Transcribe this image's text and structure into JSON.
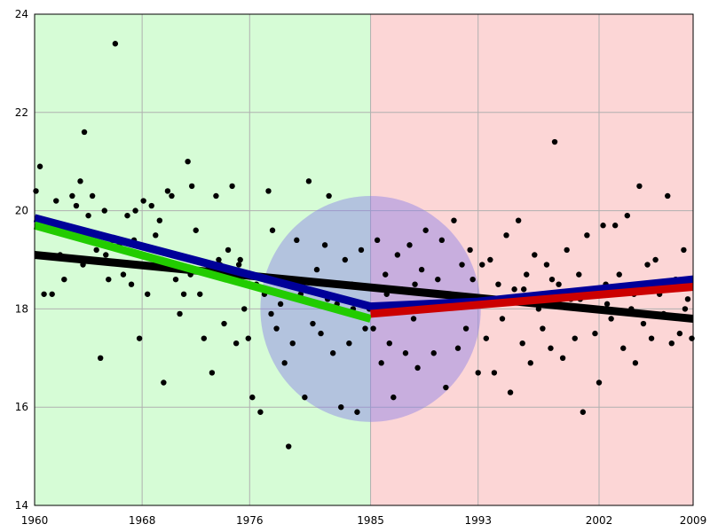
{
  "chart_data": {
    "type": "scatter",
    "title": "",
    "xlabel": "",
    "ylabel": "",
    "xlim": [
      1960,
      2009
    ],
    "ylim": [
      14,
      24
    ],
    "x_ticks": [
      1960,
      1968,
      1976,
      1985,
      1993,
      2002,
      2009
    ],
    "y_ticks": [
      14,
      16,
      18,
      20,
      22,
      24
    ],
    "grid": true,
    "regions": [
      {
        "x_start": 1960,
        "x_end": 1985,
        "color": "#d6fcd6"
      },
      {
        "x_start": 1985,
        "x_end": 2009,
        "color": "#fcd6d6"
      }
    ],
    "highlight_ellipse": {
      "cx": 1985,
      "cy": 18.0,
      "rx_years": 8.2,
      "ry": 2.3,
      "color": "#8a7fe8",
      "opacity": 0.45
    },
    "trend_lines": [
      {
        "points": [
          [
            1960,
            19.1
          ],
          [
            2009,
            17.8
          ]
        ],
        "color": "#000000"
      },
      {
        "points": [
          [
            1960,
            19.85
          ],
          [
            1985,
            18.05
          ],
          [
            1993,
            18.15
          ],
          [
            2009,
            18.6
          ]
        ],
        "color": "#000099"
      },
      {
        "points": [
          [
            1960,
            19.7
          ],
          [
            1985,
            17.8
          ]
        ],
        "color": "#22cc00"
      },
      {
        "points": [
          [
            1985,
            17.9
          ],
          [
            2009,
            18.45
          ]
        ],
        "color": "#cc0000"
      }
    ],
    "point_color": "#000000",
    "points": [
      [
        1960.1,
        20.4
      ],
      [
        1960.4,
        20.9
      ],
      [
        1960.7,
        18.3
      ],
      [
        1961.0,
        19.7
      ],
      [
        1961.3,
        18.3
      ],
      [
        1961.6,
        20.2
      ],
      [
        1961.9,
        19.1
      ],
      [
        1962.2,
        18.6
      ],
      [
        1962.5,
        19.5
      ],
      [
        1962.8,
        20.3
      ],
      [
        1963.1,
        20.1
      ],
      [
        1963.4,
        20.6
      ],
      [
        1963.7,
        21.6
      ],
      [
        1964.0,
        19.9
      ],
      [
        1964.3,
        20.3
      ],
      [
        1964.6,
        19.2
      ],
      [
        1964.9,
        17.0
      ],
      [
        1965.2,
        20.0
      ],
      [
        1965.5,
        18.6
      ],
      [
        1965.8,
        19.4
      ],
      [
        1966.0,
        23.4
      ],
      [
        1966.3,
        19.3
      ],
      [
        1966.6,
        18.7
      ],
      [
        1966.9,
        19.9
      ],
      [
        1967.2,
        18.5
      ],
      [
        1967.5,
        20.0
      ],
      [
        1967.8,
        17.4
      ],
      [
        1968.1,
        20.2
      ],
      [
        1968.4,
        18.3
      ],
      [
        1968.7,
        20.1
      ],
      [
        1969.0,
        19.5
      ],
      [
        1969.3,
        19.8
      ],
      [
        1969.6,
        16.5
      ],
      [
        1969.9,
        20.4
      ],
      [
        1970.2,
        20.3
      ],
      [
        1970.5,
        18.6
      ],
      [
        1970.8,
        17.9
      ],
      [
        1971.1,
        18.3
      ],
      [
        1971.4,
        21.0
      ],
      [
        1971.7,
        20.5
      ],
      [
        1972.0,
        19.6
      ],
      [
        1972.3,
        18.3
      ],
      [
        1972.6,
        17.4
      ],
      [
        1972.9,
        18.8
      ],
      [
        1973.2,
        16.7
      ],
      [
        1973.5,
        20.3
      ],
      [
        1973.8,
        18.9
      ],
      [
        1974.1,
        17.7
      ],
      [
        1974.4,
        19.2
      ],
      [
        1974.7,
        20.5
      ],
      [
        1975.0,
        17.3
      ],
      [
        1975.3,
        19.0
      ],
      [
        1975.6,
        18.0
      ],
      [
        1975.9,
        17.4
      ],
      [
        1976.2,
        16.2
      ],
      [
        1976.5,
        18.5
      ],
      [
        1976.8,
        15.9
      ],
      [
        1977.1,
        18.3
      ],
      [
        1977.4,
        20.4
      ],
      [
        1977.7,
        19.6
      ],
      [
        1978.0,
        17.6
      ],
      [
        1978.3,
        18.1
      ],
      [
        1978.6,
        16.9
      ],
      [
        1978.9,
        15.2
      ],
      [
        1979.2,
        17.3
      ],
      [
        1979.5,
        19.4
      ],
      [
        1979.8,
        18.3
      ],
      [
        1980.1,
        16.2
      ],
      [
        1980.4,
        20.6
      ],
      [
        1980.7,
        17.7
      ],
      [
        1981.0,
        18.8
      ],
      [
        1981.3,
        17.5
      ],
      [
        1981.6,
        19.3
      ],
      [
        1981.9,
        20.3
      ],
      [
        1982.2,
        17.1
      ],
      [
        1982.5,
        18.1
      ],
      [
        1982.8,
        16.0
      ],
      [
        1983.1,
        19.0
      ],
      [
        1983.4,
        17.3
      ],
      [
        1983.7,
        18.0
      ],
      [
        1984.0,
        15.9
      ],
      [
        1984.3,
        19.2
      ],
      [
        1984.6,
        17.6
      ],
      [
        1984.9,
        18.0
      ],
      [
        1985.2,
        17.6
      ],
      [
        1985.5,
        19.4
      ],
      [
        1985.8,
        16.9
      ],
      [
        1986.1,
        18.7
      ],
      [
        1986.4,
        17.3
      ],
      [
        1986.7,
        16.2
      ],
      [
        1987.0,
        19.1
      ],
      [
        1987.3,
        18.4
      ],
      [
        1987.6,
        17.1
      ],
      [
        1987.9,
        19.3
      ],
      [
        1988.2,
        17.8
      ],
      [
        1988.5,
        16.8
      ],
      [
        1988.8,
        18.8
      ],
      [
        1989.1,
        19.6
      ],
      [
        1989.4,
        18.0
      ],
      [
        1989.7,
        17.1
      ],
      [
        1990.0,
        18.6
      ],
      [
        1990.3,
        19.4
      ],
      [
        1990.6,
        16.4
      ],
      [
        1990.9,
        18.3
      ],
      [
        1991.2,
        19.8
      ],
      [
        1991.5,
        17.2
      ],
      [
        1991.8,
        18.9
      ],
      [
        1992.1,
        17.6
      ],
      [
        1992.4,
        19.2
      ],
      [
        1992.7,
        18.1
      ],
      [
        1993.0,
        16.7
      ],
      [
        1993.3,
        18.9
      ],
      [
        1993.6,
        17.4
      ],
      [
        1993.9,
        19.0
      ],
      [
        1994.2,
        16.7
      ],
      [
        1994.5,
        18.5
      ],
      [
        1994.8,
        17.8
      ],
      [
        1995.1,
        19.5
      ],
      [
        1995.4,
        16.3
      ],
      [
        1995.7,
        18.4
      ],
      [
        1996.0,
        19.8
      ],
      [
        1996.3,
        17.3
      ],
      [
        1996.6,
        18.7
      ],
      [
        1996.9,
        16.9
      ],
      [
        1997.2,
        19.1
      ],
      [
        1997.5,
        18.0
      ],
      [
        1997.8,
        17.6
      ],
      [
        1998.1,
        18.9
      ],
      [
        1998.4,
        17.2
      ],
      [
        1998.7,
        21.4
      ],
      [
        1999.0,
        18.5
      ],
      [
        1999.3,
        17.0
      ],
      [
        1999.6,
        19.2
      ],
      [
        1999.9,
        18.2
      ],
      [
        2000.2,
        17.4
      ],
      [
        2000.5,
        18.7
      ],
      [
        2000.8,
        15.9
      ],
      [
        2001.1,
        19.5
      ],
      [
        2001.4,
        18.3
      ],
      [
        2001.7,
        17.5
      ],
      [
        2002.0,
        16.5
      ],
      [
        2002.3,
        19.7
      ],
      [
        2002.6,
        18.1
      ],
      [
        2002.9,
        17.8
      ],
      [
        2003.2,
        19.7
      ],
      [
        2003.5,
        18.7
      ],
      [
        2003.8,
        17.2
      ],
      [
        2004.1,
        19.9
      ],
      [
        2004.4,
        18.0
      ],
      [
        2004.7,
        16.9
      ],
      [
        2005.0,
        20.5
      ],
      [
        2005.3,
        17.7
      ],
      [
        2005.6,
        18.9
      ],
      [
        2005.9,
        17.4
      ],
      [
        2006.2,
        19.0
      ],
      [
        2006.5,
        18.3
      ],
      [
        2006.8,
        17.9
      ],
      [
        2007.1,
        20.3
      ],
      [
        2007.4,
        17.3
      ],
      [
        2007.7,
        18.6
      ],
      [
        2008.0,
        17.5
      ],
      [
        2008.3,
        19.2
      ],
      [
        2008.6,
        18.2
      ],
      [
        2008.9,
        17.4
      ],
      [
        1961.5,
        19.6
      ],
      [
        1963.6,
        18.9
      ],
      [
        1965.3,
        19.1
      ],
      [
        1967.4,
        19.4
      ],
      [
        1969.5,
        19.0
      ],
      [
        1971.6,
        18.7
      ],
      [
        1973.7,
        19.0
      ],
      [
        1975.2,
        18.9
      ],
      [
        1977.6,
        17.9
      ],
      [
        1979.6,
        18.6
      ],
      [
        1981.8,
        18.2
      ],
      [
        1983.6,
        18.5
      ],
      [
        1986.2,
        18.3
      ],
      [
        1988.3,
        18.5
      ],
      [
        1990.5,
        18.1
      ],
      [
        1992.6,
        18.6
      ],
      [
        1994.3,
        18.2
      ],
      [
        1996.4,
        18.4
      ],
      [
        1998.5,
        18.6
      ],
      [
        2000.6,
        18.2
      ],
      [
        2002.5,
        18.5
      ],
      [
        2004.6,
        18.3
      ],
      [
        2006.4,
        18.5
      ],
      [
        2008.4,
        18.0
      ]
    ]
  }
}
